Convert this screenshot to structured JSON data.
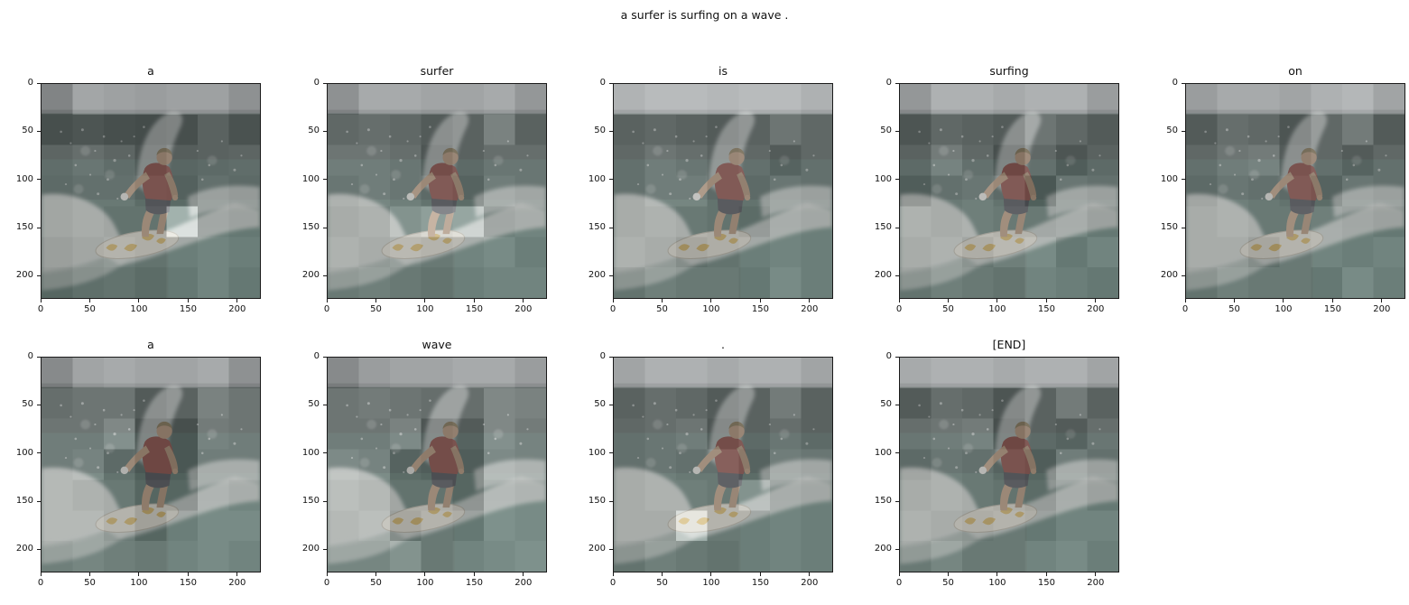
{
  "figure": {
    "suptitle": "a surfer is surfing on a wave .",
    "background_color": "#ffffff",
    "text_color": "#111111"
  },
  "axes": {
    "xticks": [
      "0",
      "50",
      "100",
      "150",
      "200"
    ],
    "yticks": [
      "0",
      "50",
      "100",
      "150",
      "200"
    ],
    "x_range": [
      0,
      224
    ],
    "y_range": [
      0,
      224
    ]
  },
  "colors": {
    "overlay_opacity": 0.5,
    "sky": "#a9aeb0",
    "dark_water": "#41504d",
    "mid_water": "#47605a",
    "teal_water": "#527269",
    "foam": "#e6eae6",
    "shirt_red": "#8e4039",
    "skin": "#c29c7a",
    "board": "#e9e6d8",
    "board_yellow": "#d8b254"
  },
  "chart_data": {
    "type": "heatmap",
    "subtype": "image-captioning attention map overlays on photo patches",
    "title": "a surfer is surfing on a wave .",
    "caption_tokens": [
      "a",
      "surfer",
      "is",
      "surfing",
      "on",
      "a",
      "wave",
      ".",
      "[END]"
    ],
    "grid_rows": 7,
    "grid_cols": 7,
    "patch_size_px": 32,
    "image_extent": [
      0,
      224,
      224,
      0
    ],
    "layout": {
      "rows": 2,
      "cols": 5,
      "row_counts": [
        5,
        4
      ],
      "legend": "none",
      "grid": "off"
    },
    "scene_description": "surfer in a dark red shirt crouching on a white surfboard with yellow markings, riding a breaking wave with white spray; grey sky band at top, teal water below",
    "subplots": [
      {
        "word": "a",
        "attention": [
          [
            0.35,
            0.62,
            0.58,
            0.55,
            0.58,
            0.58,
            0.45
          ],
          [
            0.3,
            0.35,
            0.3,
            0.28,
            0.3,
            0.45,
            0.33
          ],
          [
            0.48,
            0.55,
            0.48,
            0.33,
            0.42,
            0.45,
            0.48
          ],
          [
            0.45,
            0.5,
            0.5,
            0.4,
            0.38,
            0.5,
            0.45
          ],
          [
            0.45,
            0.5,
            0.45,
            0.45,
            0.95,
            0.5,
            0.45
          ],
          [
            0.4,
            0.45,
            0.5,
            0.45,
            0.5,
            0.55,
            0.5
          ],
          [
            0.35,
            0.42,
            0.45,
            0.4,
            0.45,
            0.55,
            0.45
          ]
        ]
      },
      {
        "word": "surfer",
        "attention": [
          [
            0.45,
            0.65,
            0.65,
            0.6,
            0.6,
            0.65,
            0.5
          ],
          [
            0.5,
            0.55,
            0.5,
            0.4,
            0.45,
            0.7,
            0.45
          ],
          [
            0.6,
            0.6,
            0.55,
            0.35,
            0.45,
            0.55,
            0.55
          ],
          [
            0.55,
            0.6,
            0.55,
            0.45,
            0.4,
            0.6,
            0.55
          ],
          [
            0.5,
            0.55,
            0.7,
            0.8,
            0.85,
            0.5,
            0.55
          ],
          [
            0.55,
            0.5,
            0.55,
            0.5,
            0.55,
            0.6,
            0.5
          ],
          [
            0.5,
            0.55,
            0.5,
            0.45,
            0.5,
            0.55,
            0.55
          ]
        ]
      },
      {
        "word": "is",
        "attention": [
          [
            0.72,
            0.78,
            0.78,
            0.75,
            0.78,
            0.78,
            0.7
          ],
          [
            0.45,
            0.5,
            0.45,
            0.4,
            0.45,
            0.6,
            0.5
          ],
          [
            0.5,
            0.6,
            0.55,
            0.45,
            0.5,
            0.4,
            0.5
          ],
          [
            0.5,
            0.6,
            0.6,
            0.45,
            0.45,
            0.55,
            0.5
          ],
          [
            0.5,
            0.55,
            0.5,
            0.45,
            0.4,
            0.55,
            0.5
          ],
          [
            0.55,
            0.5,
            0.4,
            0.45,
            0.5,
            0.55,
            0.5
          ],
          [
            0.45,
            0.55,
            0.5,
            0.5,
            0.45,
            0.6,
            0.5
          ]
        ]
      },
      {
        "word": "surfing",
        "attention": [
          [
            0.5,
            0.7,
            0.7,
            0.65,
            0.7,
            0.7,
            0.55
          ],
          [
            0.35,
            0.5,
            0.45,
            0.4,
            0.6,
            0.5,
            0.4
          ],
          [
            0.45,
            0.65,
            0.5,
            0.3,
            0.5,
            0.35,
            0.45
          ],
          [
            0.35,
            0.5,
            0.55,
            0.45,
            0.3,
            0.55,
            0.5
          ],
          [
            0.55,
            0.5,
            0.55,
            0.5,
            0.5,
            0.55,
            0.45
          ],
          [
            0.5,
            0.55,
            0.45,
            0.55,
            0.6,
            0.45,
            0.55
          ],
          [
            0.45,
            0.55,
            0.5,
            0.45,
            0.55,
            0.5,
            0.45
          ]
        ]
      },
      {
        "word": "on",
        "attention": [
          [
            0.55,
            0.65,
            0.65,
            0.6,
            0.7,
            0.75,
            0.6
          ],
          [
            0.4,
            0.55,
            0.5,
            0.35,
            0.5,
            0.65,
            0.4
          ],
          [
            0.5,
            0.6,
            0.65,
            0.4,
            0.5,
            0.4,
            0.5
          ],
          [
            0.45,
            0.55,
            0.5,
            0.45,
            0.4,
            0.55,
            0.5
          ],
          [
            0.5,
            0.55,
            0.5,
            0.5,
            0.55,
            0.5,
            0.45
          ],
          [
            0.5,
            0.5,
            0.4,
            0.5,
            0.55,
            0.5,
            0.55
          ],
          [
            0.45,
            0.55,
            0.5,
            0.5,
            0.45,
            0.6,
            0.5
          ]
        ]
      },
      {
        "word": "a",
        "attention": [
          [
            0.4,
            0.6,
            0.65,
            0.6,
            0.6,
            0.65,
            0.45
          ],
          [
            0.55,
            0.6,
            0.6,
            0.4,
            0.45,
            0.7,
            0.6
          ],
          [
            0.6,
            0.6,
            0.75,
            0.3,
            0.3,
            0.65,
            0.6
          ],
          [
            0.6,
            0.65,
            0.45,
            0.3,
            0.3,
            0.6,
            0.6
          ],
          [
            0.6,
            0.55,
            0.5,
            0.35,
            0.35,
            0.6,
            0.55
          ],
          [
            0.6,
            0.6,
            0.5,
            0.35,
            0.5,
            0.6,
            0.6
          ],
          [
            0.55,
            0.6,
            0.55,
            0.5,
            0.55,
            0.6,
            0.55
          ]
        ]
      },
      {
        "word": "wave",
        "attention": [
          [
            0.4,
            0.55,
            0.6,
            0.6,
            0.65,
            0.65,
            0.55
          ],
          [
            0.6,
            0.65,
            0.6,
            0.55,
            0.55,
            0.75,
            0.7
          ],
          [
            0.6,
            0.6,
            0.7,
            0.35,
            0.4,
            0.75,
            0.65
          ],
          [
            0.7,
            0.65,
            0.4,
            0.35,
            0.35,
            0.7,
            0.65
          ],
          [
            0.65,
            0.6,
            0.45,
            0.45,
            0.35,
            0.65,
            0.6
          ],
          [
            0.6,
            0.65,
            0.4,
            0.5,
            0.45,
            0.65,
            0.6
          ],
          [
            0.6,
            0.6,
            0.7,
            0.5,
            0.55,
            0.6,
            0.65
          ]
        ]
      },
      {
        "word": ".",
        "attention": [
          [
            0.6,
            0.7,
            0.7,
            0.65,
            0.7,
            0.7,
            0.6
          ],
          [
            0.45,
            0.55,
            0.5,
            0.4,
            0.45,
            0.65,
            0.45
          ],
          [
            0.5,
            0.55,
            0.6,
            0.35,
            0.45,
            0.55,
            0.45
          ],
          [
            0.5,
            0.55,
            0.5,
            0.5,
            0.4,
            0.6,
            0.55
          ],
          [
            0.5,
            0.55,
            0.55,
            0.5,
            0.7,
            0.55,
            0.5
          ],
          [
            0.5,
            0.5,
            0.9,
            0.5,
            0.5,
            0.55,
            0.5
          ],
          [
            0.45,
            0.55,
            0.5,
            0.45,
            0.5,
            0.55,
            0.5
          ]
        ]
      },
      {
        "word": "[END]",
        "attention": [
          [
            0.65,
            0.7,
            0.7,
            0.65,
            0.7,
            0.7,
            0.6
          ],
          [
            0.4,
            0.55,
            0.5,
            0.35,
            0.45,
            0.65,
            0.45
          ],
          [
            0.55,
            0.6,
            0.65,
            0.3,
            0.45,
            0.4,
            0.55
          ],
          [
            0.45,
            0.55,
            0.5,
            0.4,
            0.35,
            0.6,
            0.5
          ],
          [
            0.5,
            0.55,
            0.5,
            0.45,
            0.4,
            0.55,
            0.45
          ],
          [
            0.55,
            0.5,
            0.45,
            0.5,
            0.45,
            0.55,
            0.55
          ],
          [
            0.5,
            0.6,
            0.5,
            0.5,
            0.55,
            0.6,
            0.5
          ]
        ]
      }
    ]
  }
}
